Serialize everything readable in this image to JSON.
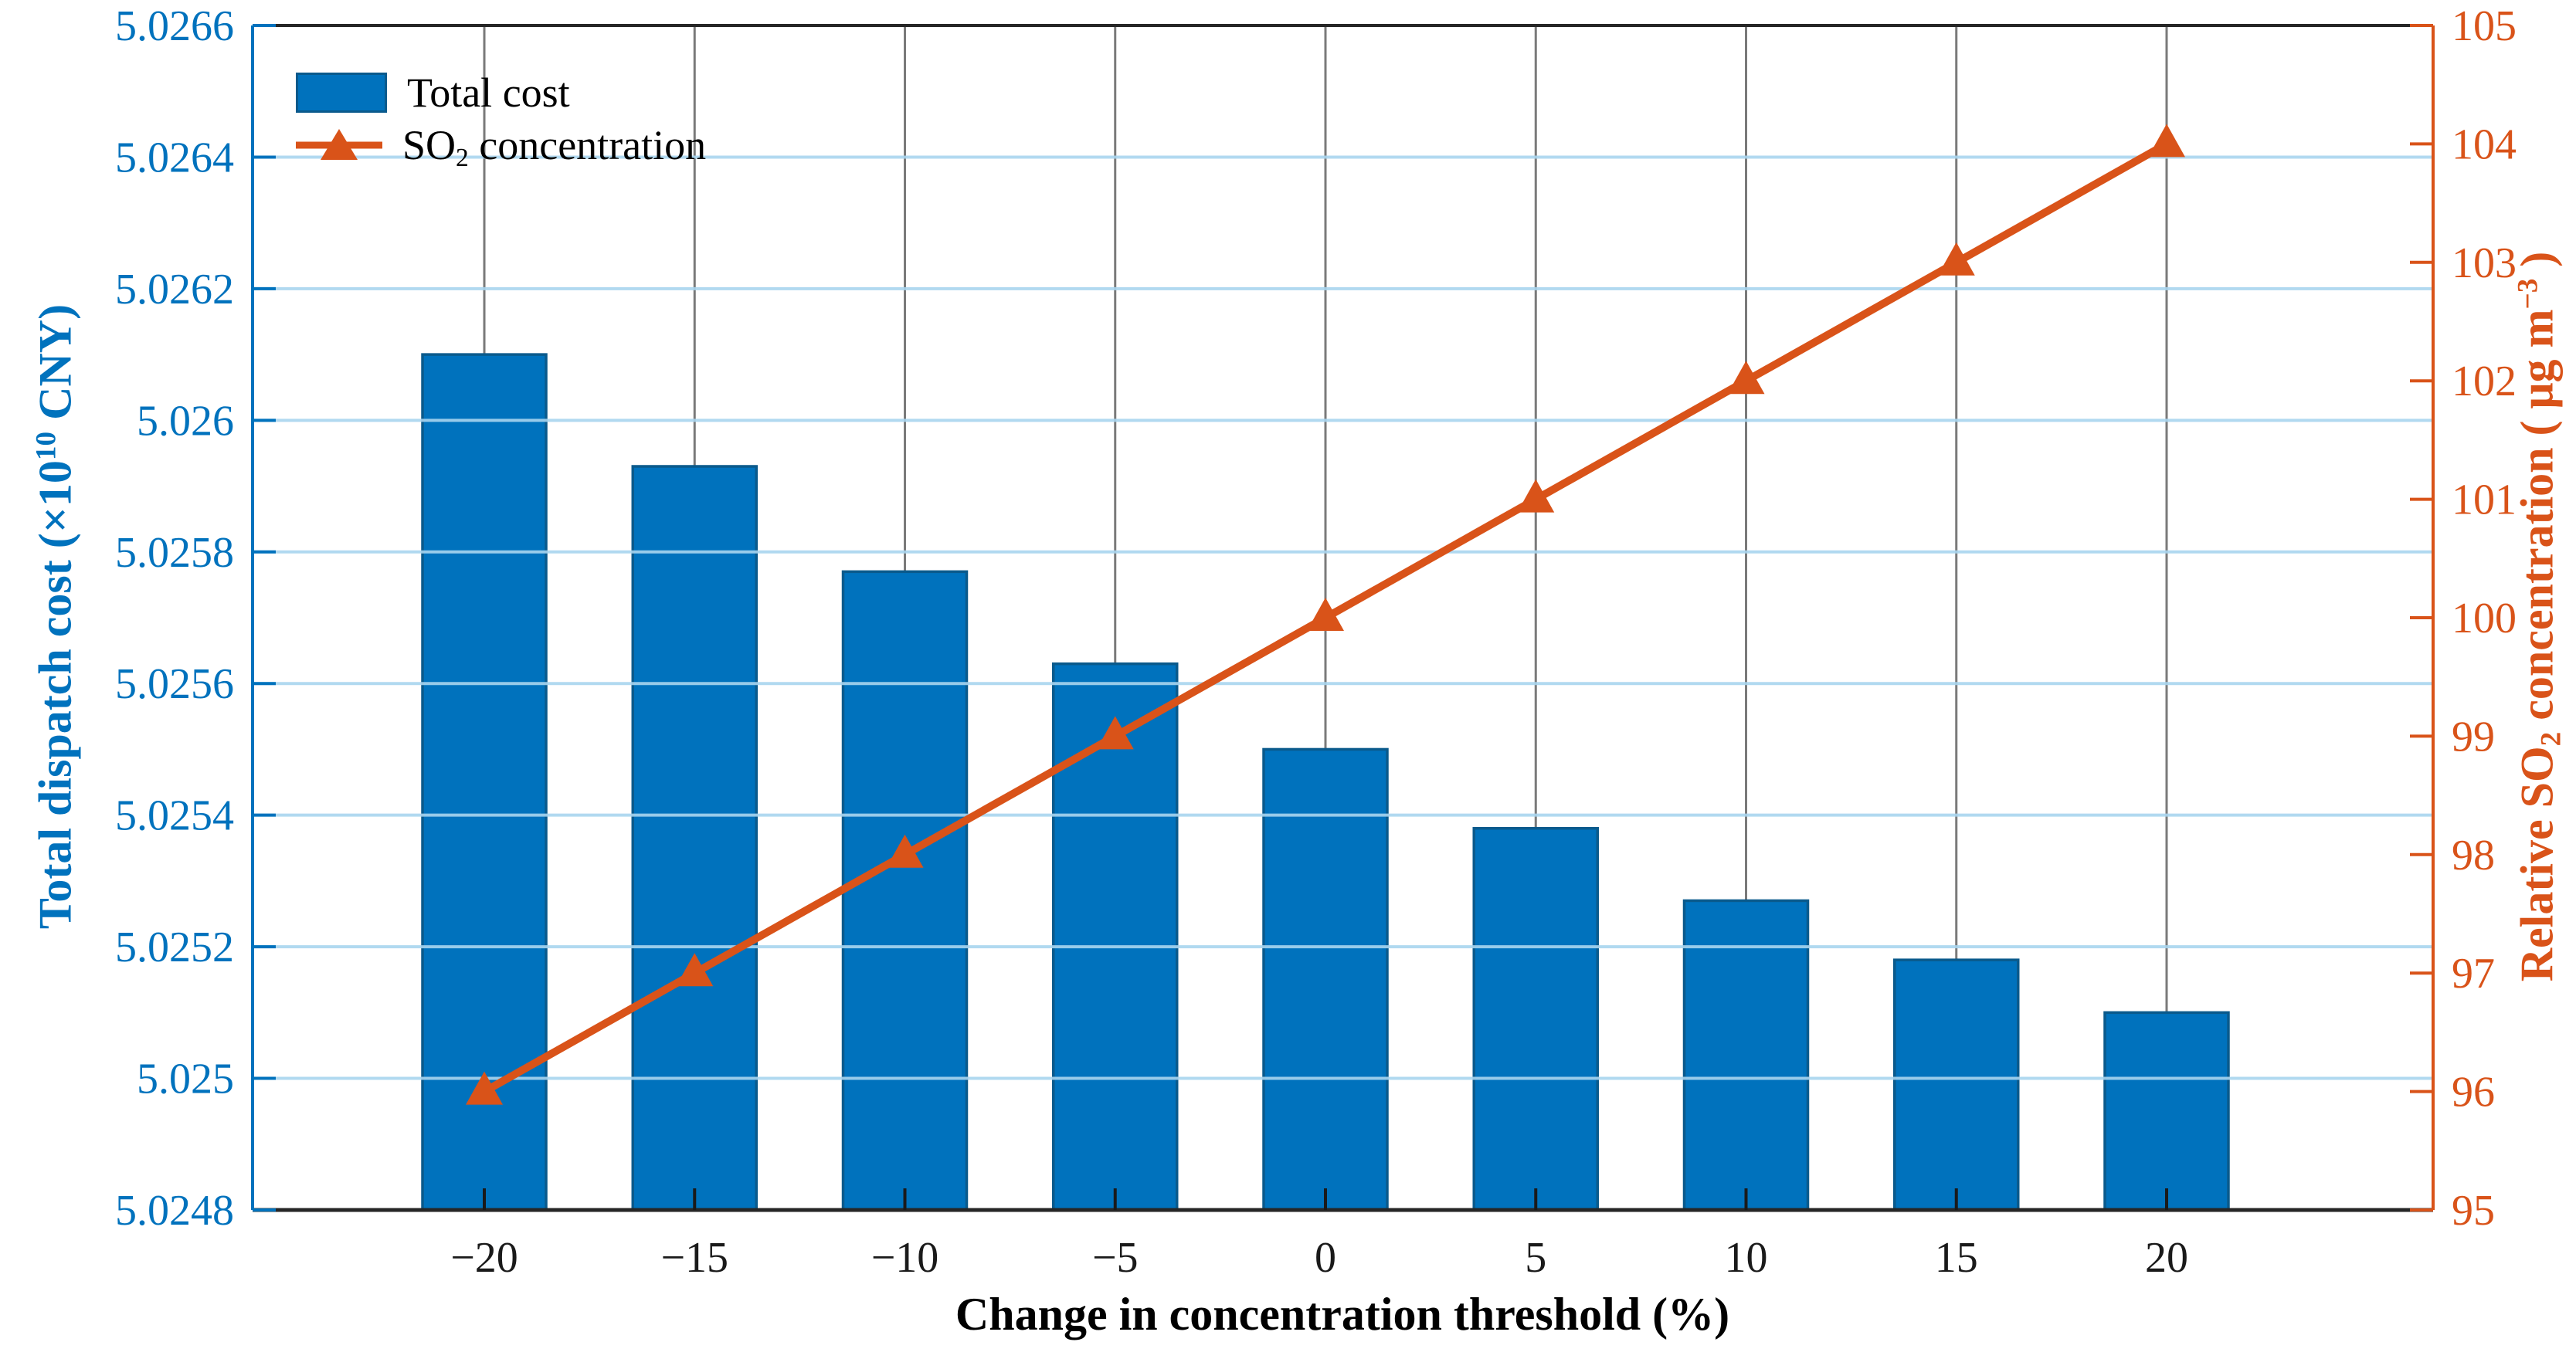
{
  "figure": {
    "background": "#ffffff"
  },
  "titles": {
    "y_left": {
      "pre": "Total dispatch cost (×10",
      "sup": "10",
      "post": " CNY)",
      "color": "#0072BD"
    },
    "y_right": {
      "pre": "Relative SO",
      "sub": "2",
      "mid": " concentration ( μg m",
      "sup": "−3",
      "post": " )",
      "color": "#D95319"
    },
    "x": {
      "text": "Change in concentration threshold (%)",
      "color": "#000000"
    }
  },
  "legend": {
    "position": "top-left-inside",
    "items": [
      {
        "label": "Total cost",
        "swatch": "bar",
        "color": "#0072BD"
      },
      {
        "label_base": "SO",
        "label_sub": "2",
        "label_rest": " concentration",
        "swatch": "line-triangle",
        "color": "#D95319"
      }
    ]
  },
  "chart_data": {
    "type": "bar",
    "title": "",
    "categories": [
      -20,
      -15,
      -10,
      -5,
      0,
      5,
      10,
      15,
      20
    ],
    "series": [
      {
        "name": "Total cost",
        "type": "bar",
        "axis": "left",
        "color": "#0072BD",
        "edge_color": "#0a5a8c",
        "values": [
          5.0261,
          5.02593,
          5.02577,
          5.02563,
          5.0255,
          5.02538,
          5.02527,
          5.02518,
          5.0251
        ]
      },
      {
        "name": "SO2 concentration",
        "type": "line",
        "axis": "right",
        "color": "#D95319",
        "marker": "triangle-up",
        "line_width": 10,
        "values": [
          96,
          97,
          98,
          99,
          100,
          101,
          102,
          103,
          104
        ]
      }
    ],
    "x_axis": {
      "label": "Change in concentration threshold (%)",
      "tick_labels": [
        "−20",
        "−15",
        "−10",
        "−5",
        "0",
        "5",
        "10",
        "15",
        "20"
      ],
      "tick_color": "#1a1a1a"
    },
    "y_left": {
      "label": "Total dispatch cost (×10^10 CNY)",
      "lim": [
        5.0248,
        5.0266
      ],
      "ticks": [
        5.0248,
        5.025,
        5.0252,
        5.0254,
        5.0256,
        5.0258,
        5.026,
        5.0262,
        5.0264,
        5.0266
      ],
      "tick_labels": [
        "5.0248",
        "5.025",
        "5.0252",
        "5.0254",
        "5.0256",
        "5.0258",
        "5.026",
        "5.0262",
        "5.0264",
        "5.0266"
      ],
      "color": "#0072BD"
    },
    "y_right": {
      "label": "Relative SO2 concentration ( μg m^−3 )",
      "lim": [
        95,
        105
      ],
      "ticks": [
        95,
        96,
        97,
        98,
        99,
        100,
        101,
        102,
        103,
        104,
        105
      ],
      "tick_labels": [
        "95",
        "96",
        "97",
        "98",
        "99",
        "100",
        "101",
        "102",
        "103",
        "104",
        "105"
      ],
      "color": "#D95319"
    },
    "grid": {
      "horizontal": true,
      "vertical": true,
      "h_color": "#A9D5EF",
      "v_color": "#7a7a7a"
    },
    "frame": {
      "top_bottom_color": "#262626"
    },
    "legend_position": "top-left-inside"
  }
}
